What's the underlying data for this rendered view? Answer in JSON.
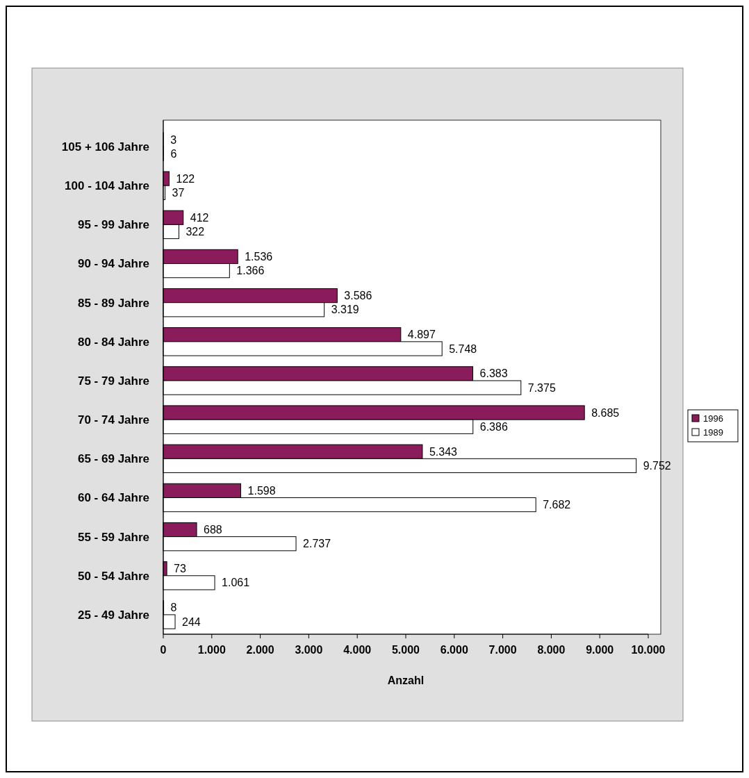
{
  "chart_data": {
    "type": "bar",
    "orientation": "horizontal",
    "xlabel": "Anzahl",
    "categories": [
      "105 + 106 Jahre",
      "100 - 104 Jahre",
      "95 - 99 Jahre",
      "90 - 94 Jahre",
      "85 - 89 Jahre",
      "80 - 84 Jahre",
      "75 - 79 Jahre",
      "70 - 74 Jahre",
      "65 - 69 Jahre",
      "60 - 64 Jahre",
      "55 - 59 Jahre",
      "50 - 54 Jahre",
      "25 - 49 Jahre"
    ],
    "series": [
      {
        "name": "1996",
        "color": "#8b1c5c",
        "values": [
          3,
          122,
          412,
          1536,
          3586,
          4897,
          6383,
          8685,
          5343,
          1598,
          688,
          73,
          8
        ],
        "value_labels": [
          "3",
          "122",
          "412",
          "1.536",
          "3.586",
          "4.897",
          "6.383",
          "8.685",
          "5.343",
          "1.598",
          "688",
          "73",
          "8"
        ]
      },
      {
        "name": "1989",
        "color": "#ffffff",
        "values": [
          6,
          37,
          322,
          1366,
          3319,
          5748,
          7375,
          6386,
          9752,
          7682,
          2737,
          1061,
          244
        ],
        "value_labels": [
          "6",
          "37",
          "322",
          "1.366",
          "3.319",
          "5.748",
          "7.375",
          "6.386",
          "9.752",
          "7.682",
          "2.737",
          "1.061",
          "244"
        ]
      }
    ],
    "xlim": [
      0,
      10000
    ],
    "xticks": [
      0,
      {
        "value": 1000,
        "label": "1.000"
      },
      {
        "value": 2000,
        "label": "2.000"
      },
      {
        "value": 3000,
        "label": "3.000"
      },
      {
        "value": 4000,
        "label": "4.000"
      },
      {
        "value": 5000,
        "label": "5.000"
      },
      {
        "value": 6000,
        "label": "6.000"
      },
      {
        "value": 7000,
        "label": "7.000"
      },
      {
        "value": 8000,
        "label": "8.000"
      },
      {
        "value": 9000,
        "label": "9.000"
      },
      {
        "value": 10000,
        "label": "10.000"
      }
    ],
    "grid": false,
    "legend": "right"
  }
}
